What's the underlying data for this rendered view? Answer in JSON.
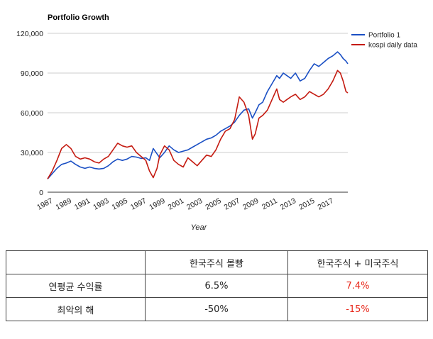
{
  "chart_data": {
    "type": "line",
    "title": "Portfolio Growth",
    "xlabel": "Year",
    "ylabel": "",
    "xlim": [
      1987,
      2019.1
    ],
    "ylim": [
      0,
      120000
    ],
    "yticks": [
      0,
      30000,
      60000,
      90000,
      120000
    ],
    "ytick_labels": [
      "0",
      "30,000",
      "60,000",
      "90,000",
      "120,000"
    ],
    "xtick_labels": [
      "1987",
      "1989",
      "1991",
      "1993",
      "1995",
      "1997",
      "1999",
      "2001",
      "2003",
      "2005",
      "2007",
      "2009",
      "2011",
      "2013",
      "2015",
      "2017"
    ],
    "grid": "horizontal",
    "legend_position": "top-right",
    "series": [
      {
        "name": "Portfolio 1",
        "color": "#1a4fc4",
        "points": [
          [
            1987.0,
            10000
          ],
          [
            1987.5,
            14000
          ],
          [
            1988.0,
            18000
          ],
          [
            1988.5,
            21000
          ],
          [
            1989.0,
            22000
          ],
          [
            1989.5,
            23500
          ],
          [
            1990.0,
            21000
          ],
          [
            1990.5,
            19000
          ],
          [
            1991.0,
            18000
          ],
          [
            1991.5,
            19000
          ],
          [
            1992.0,
            18000
          ],
          [
            1992.5,
            17500
          ],
          [
            1993.0,
            18000
          ],
          [
            1993.5,
            20000
          ],
          [
            1994.0,
            23000
          ],
          [
            1994.5,
            25000
          ],
          [
            1995.0,
            24000
          ],
          [
            1995.5,
            25000
          ],
          [
            1996.0,
            27000
          ],
          [
            1996.5,
            26500
          ],
          [
            1997.0,
            25500
          ],
          [
            1997.5,
            26000
          ],
          [
            1997.9,
            24000
          ],
          [
            1998.3,
            33000
          ],
          [
            1998.7,
            29000
          ],
          [
            1999.0,
            26000
          ],
          [
            1999.5,
            30000
          ],
          [
            2000.0,
            35000
          ],
          [
            2000.5,
            32000
          ],
          [
            2001.0,
            30000
          ],
          [
            2001.5,
            31000
          ],
          [
            2002.0,
            32000
          ],
          [
            2002.5,
            34000
          ],
          [
            2003.0,
            36000
          ],
          [
            2003.5,
            38000
          ],
          [
            2004.0,
            40000
          ],
          [
            2004.5,
            41000
          ],
          [
            2005.0,
            43000
          ],
          [
            2005.5,
            46000
          ],
          [
            2006.0,
            48000
          ],
          [
            2006.5,
            50000
          ],
          [
            2007.0,
            53000
          ],
          [
            2007.5,
            58000
          ],
          [
            2008.0,
            62000
          ],
          [
            2008.5,
            63000
          ],
          [
            2008.9,
            56000
          ],
          [
            2009.2,
            60000
          ],
          [
            2009.6,
            66000
          ],
          [
            2010.0,
            68000
          ],
          [
            2010.5,
            76000
          ],
          [
            2011.0,
            82000
          ],
          [
            2011.5,
            88000
          ],
          [
            2011.8,
            86000
          ],
          [
            2012.2,
            90000
          ],
          [
            2012.6,
            88000
          ],
          [
            2013.0,
            86000
          ],
          [
            2013.5,
            90000
          ],
          [
            2014.0,
            84000
          ],
          [
            2014.5,
            86000
          ],
          [
            2015.0,
            92000
          ],
          [
            2015.5,
            97000
          ],
          [
            2016.0,
            95000
          ],
          [
            2016.5,
            98000
          ],
          [
            2017.0,
            101000
          ],
          [
            2017.5,
            103000
          ],
          [
            2018.0,
            106000
          ],
          [
            2018.3,
            104000
          ],
          [
            2018.6,
            101000
          ],
          [
            2018.9,
            99000
          ],
          [
            2019.1,
            97000
          ]
        ]
      },
      {
        "name": "kospi daily data",
        "color": "#c41a10",
        "points": [
          [
            1987.0,
            10000
          ],
          [
            1987.5,
            16000
          ],
          [
            1988.0,
            24000
          ],
          [
            1988.5,
            33000
          ],
          [
            1989.0,
            36000
          ],
          [
            1989.5,
            33000
          ],
          [
            1990.0,
            27000
          ],
          [
            1990.5,
            25000
          ],
          [
            1991.0,
            26000
          ],
          [
            1991.5,
            25000
          ],
          [
            1992.0,
            23000
          ],
          [
            1992.5,
            22000
          ],
          [
            1993.0,
            25000
          ],
          [
            1993.5,
            27000
          ],
          [
            1994.0,
            32000
          ],
          [
            1994.5,
            37000
          ],
          [
            1995.0,
            35000
          ],
          [
            1995.5,
            34000
          ],
          [
            1996.0,
            35000
          ],
          [
            1996.5,
            30000
          ],
          [
            1997.0,
            27000
          ],
          [
            1997.5,
            24000
          ],
          [
            1997.9,
            16000
          ],
          [
            1998.3,
            11000
          ],
          [
            1998.7,
            18000
          ],
          [
            1999.0,
            28000
          ],
          [
            1999.5,
            35000
          ],
          [
            2000.0,
            32000
          ],
          [
            2000.5,
            24000
          ],
          [
            2001.0,
            21000
          ],
          [
            2001.5,
            19000
          ],
          [
            2002.0,
            26000
          ],
          [
            2002.5,
            23000
          ],
          [
            2003.0,
            20000
          ],
          [
            2003.5,
            24000
          ],
          [
            2004.0,
            28000
          ],
          [
            2004.5,
            27000
          ],
          [
            2005.0,
            32000
          ],
          [
            2005.5,
            40000
          ],
          [
            2006.0,
            46000
          ],
          [
            2006.5,
            48000
          ],
          [
            2007.0,
            55000
          ],
          [
            2007.5,
            72000
          ],
          [
            2008.0,
            68000
          ],
          [
            2008.5,
            58000
          ],
          [
            2008.9,
            40000
          ],
          [
            2009.2,
            44000
          ],
          [
            2009.6,
            56000
          ],
          [
            2010.0,
            58000
          ],
          [
            2010.5,
            62000
          ],
          [
            2011.0,
            70000
          ],
          [
            2011.5,
            78000
          ],
          [
            2011.8,
            70000
          ],
          [
            2012.2,
            68000
          ],
          [
            2012.6,
            70000
          ],
          [
            2013.0,
            72000
          ],
          [
            2013.5,
            74000
          ],
          [
            2014.0,
            70000
          ],
          [
            2014.5,
            72000
          ],
          [
            2015.0,
            76000
          ],
          [
            2015.5,
            74000
          ],
          [
            2016.0,
            72000
          ],
          [
            2016.5,
            74000
          ],
          [
            2017.0,
            78000
          ],
          [
            2017.5,
            84000
          ],
          [
            2018.0,
            92000
          ],
          [
            2018.3,
            90000
          ],
          [
            2018.6,
            84000
          ],
          [
            2018.9,
            76000
          ],
          [
            2019.1,
            75000
          ]
        ]
      }
    ]
  },
  "table": {
    "header": [
      "",
      "한국주식 몰빵",
      "한국주식 + 미국주식"
    ],
    "rows": [
      [
        "연평균 수익률",
        "6.5%",
        "7.4%"
      ],
      [
        "최악의 해",
        "-50%",
        "-15%"
      ]
    ],
    "highlight_color": "#e8291c"
  }
}
